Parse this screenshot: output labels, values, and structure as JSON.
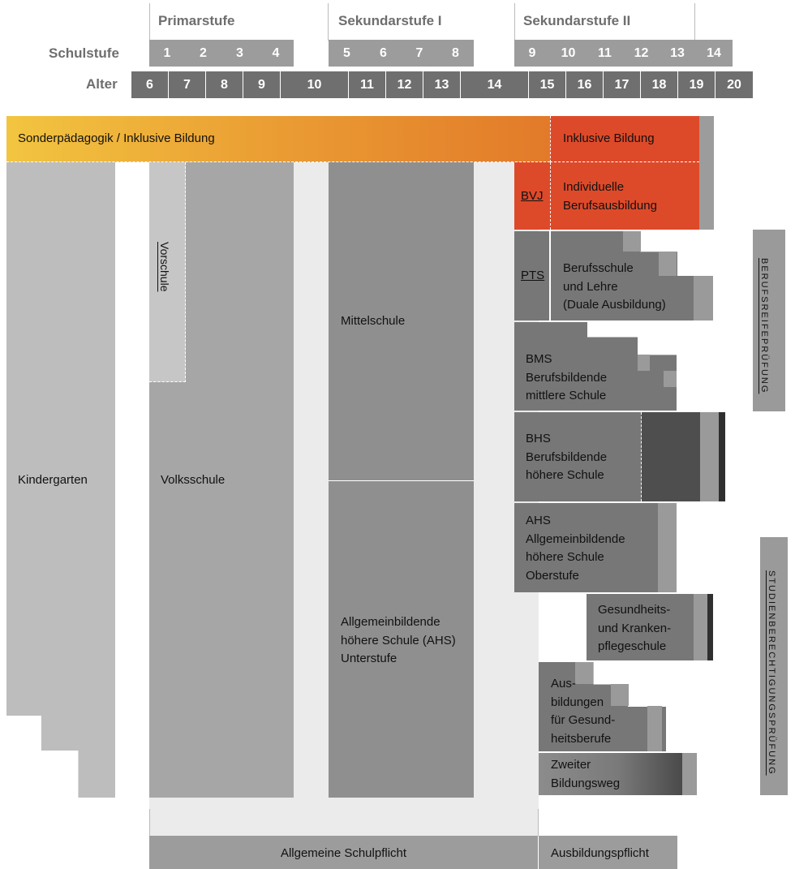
{
  "header": {
    "stages": [
      "Primarstufe",
      "Sekundarstufe I",
      "Sekundarstufe II"
    ],
    "schulstufe_label": "Schulstufe",
    "alter_label": "Alter",
    "schulstufen": [
      "1",
      "2",
      "3",
      "4",
      "5",
      "6",
      "7",
      "8",
      "9",
      "10",
      "11",
      "12",
      "13",
      "14"
    ],
    "alter": [
      "6",
      "7",
      "8",
      "9",
      "10",
      "11",
      "12",
      "13",
      "14",
      "15",
      "16",
      "17",
      "18",
      "19",
      "20"
    ]
  },
  "bands": {
    "sonder": "Sonderpädagogik / Inklusive Bildung",
    "inklusiv": "Inklusive Bildung",
    "individuell": "Individuelle\nBerufsausbildung",
    "bvj": "BVJ",
    "pts": "PTS"
  },
  "blocks": {
    "kindergarten": "Kindergarten",
    "vorschule": "Vorschule",
    "volksschule": "Volksschule",
    "mittelschule": "Mittelschule",
    "ahs_unterstufe": "Allgemeinbildende\nhöhere Schule (AHS)\nUnterstufe",
    "berufsschule": "Berufsschule\nund Lehre\n(Duale Ausbildung)",
    "bms": "BMS\nBerufsbildende\nmittlere Schule",
    "bhs": "BHS\nBerufsbildende\nhöhere Schule",
    "ahs_oberstufe": "AHS\nAllgemeinbildende\nhöhere Schule\nOberstufe",
    "gesundheit": "Gesundheits-\nund Kranken-\npflegeschule",
    "ausbildungen": "Aus-\nbildungen\nfür Gesund-\nheitsberufe",
    "zweiter": "Zweiter\nBildungsweg"
  },
  "side": {
    "berufsreife": "BERUFSREIFEPRÜFUNG",
    "studien": "STUDIENBERECHTIGUNGSPRÜFUNG"
  },
  "footer": {
    "schulpflicht": "Allgemeine Schulpflicht",
    "ausbildungspflicht": "Ausbildungspflicht"
  },
  "colors": {
    "header_gray": "#9c9c9c",
    "age_gray": "#6f6f6f",
    "orange_start": "#f2c540",
    "orange_end": "#e27a2a",
    "red": "#dd4a2a"
  }
}
